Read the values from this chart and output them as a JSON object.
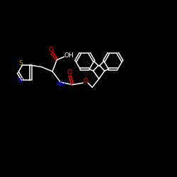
{
  "bg_color": "#000000",
  "bond_color": "#ffffff",
  "S_color": "#ccaa00",
  "N_color": "#0000ff",
  "O_color": "#ff0000",
  "fig_width": 2.5,
  "fig_height": 2.5,
  "dpi": 100,
  "xlim": [
    0,
    10
  ],
  "ylim": [
    0,
    10
  ]
}
